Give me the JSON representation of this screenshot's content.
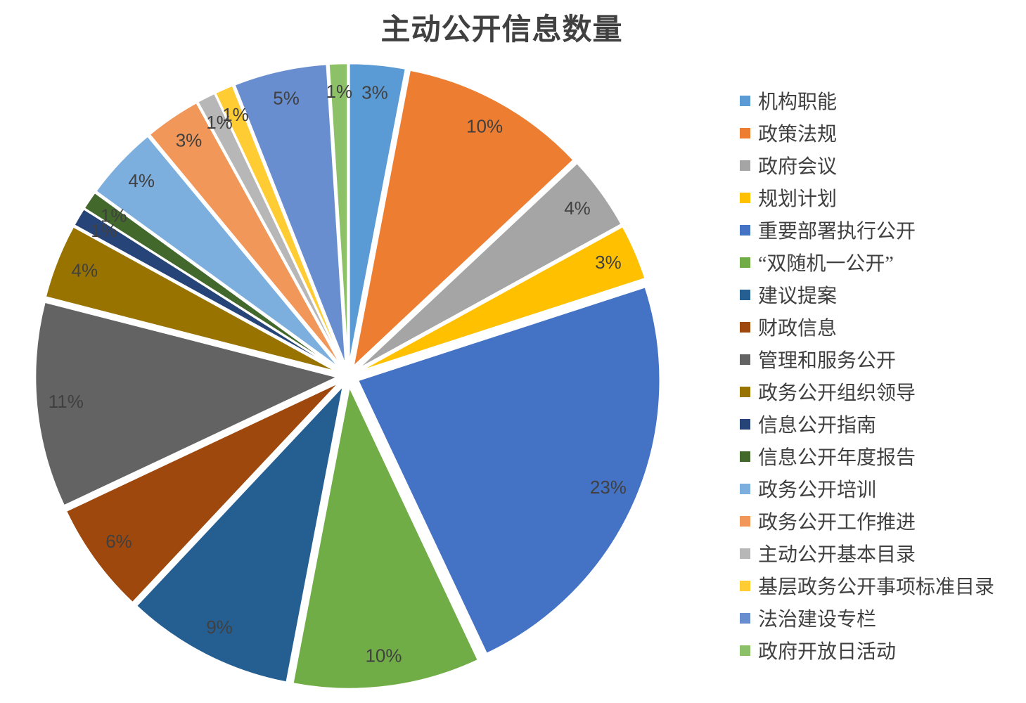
{
  "chart_data": {
    "type": "pie",
    "title": "主动公开信息数量",
    "style": "exploded",
    "legend_position": "right",
    "unit": "%",
    "categories": [
      "机构职能",
      "政策法规",
      "政府会议",
      "规划计划",
      "重要部署执行公开",
      "“双随机一公开”",
      "建议提案",
      "财政信息",
      "管理和服务公开",
      "政务公开组织领导",
      "信息公开指南",
      "信息公开年度报告",
      "政务公开培训",
      "政务公开工作推进",
      "主动公开基本目录",
      "基层政务公开事项标准目录",
      "法治建设专栏",
      "政府开放日活动"
    ],
    "values": [
      3,
      10,
      4,
      3,
      23,
      10,
      9,
      6,
      11,
      4,
      1,
      1,
      4,
      3,
      1,
      1,
      5,
      1
    ],
    "labels": [
      "3%",
      "10%",
      "4%",
      "3%",
      "23%",
      "10%",
      "9%",
      "6%",
      "11%",
      "4%",
      "1%",
      "1%",
      "4%",
      "3%",
      "1%",
      "1%",
      "5%",
      "1%"
    ],
    "colors": [
      "#5B9BD5",
      "#ED7D31",
      "#A5A5A5",
      "#FFC000",
      "#4472C4",
      "#70AD47",
      "#255E91",
      "#9E480E",
      "#636363",
      "#997300",
      "#264478",
      "#43682B",
      "#7CAFDD",
      "#F1975A",
      "#B7B7B7",
      "#FFCD33",
      "#698ED0",
      "#8CC168"
    ],
    "title_color": "#404040",
    "label_color": "#404040",
    "legend_text_color": "#404040",
    "slice_border_color": "#FFFFFF",
    "start_angle_deg": 0,
    "direction": "clockwise"
  }
}
